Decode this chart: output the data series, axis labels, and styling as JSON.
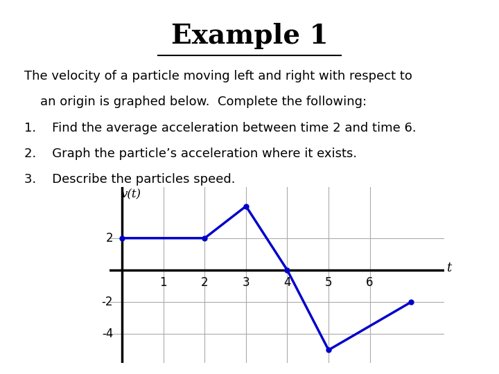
{
  "title": "Example 1",
  "title_bg_color": "#808080",
  "title_text_color": "#000000",
  "title_fontsize": 28,
  "body_text": [
    "The velocity of a particle moving left and right with respect to",
    "    an origin is graphed below.  Complete the following:",
    "1.    Find the average acceleration between time 2 and time 6.",
    "2.    Graph the particle’s acceleration where it exists.",
    "3.    Describe the particles speed."
  ],
  "body_fontsize": 13,
  "graph_x": [
    0,
    2,
    3,
    4,
    5,
    7
  ],
  "graph_y": [
    2,
    2,
    4,
    0,
    -5,
    -2
  ],
  "line_color": "#0000CC",
  "line_width": 2.5,
  "marker_size": 5,
  "xlim": [
    -0.3,
    7.8
  ],
  "ylim": [
    -5.8,
    5.2
  ],
  "xticks": [
    1,
    2,
    3,
    4,
    5,
    6
  ],
  "yticks": [
    -4,
    -2,
    2
  ],
  "xlabel": "t",
  "ylabel": "v(t)",
  "grid_color": "#aaaaaa",
  "axis_color": "#000000",
  "bg_color": "#ffffff"
}
